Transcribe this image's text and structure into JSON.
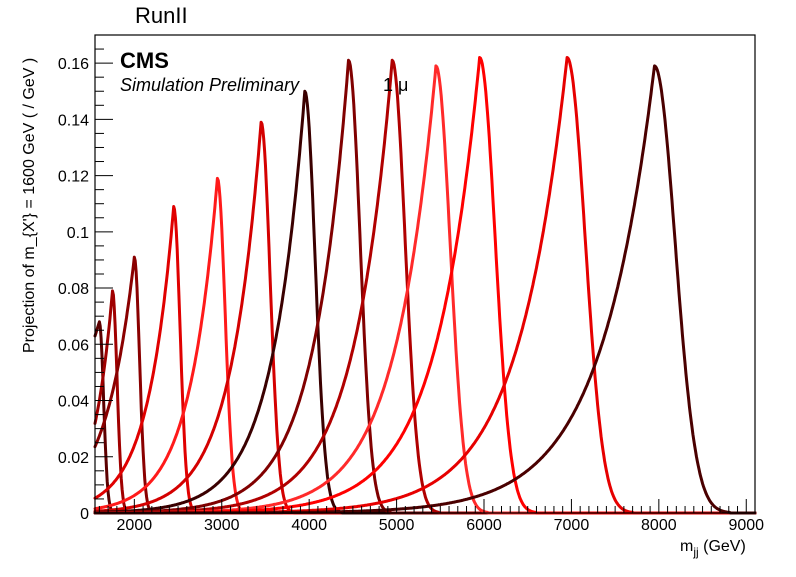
{
  "chart_data": {
    "type": "line",
    "title": "RunII",
    "label_main": "CMS",
    "label_sub": "Simulation Preliminary",
    "label_extra": "1 μ",
    "xlabel": "m",
    "xlabel_sub": "jj",
    "xlabel_unit": " (GeV)",
    "ylabel": "Projection of m_{X'} = 1600 GeV ( / GeV )",
    "xlim": [
      1550,
      9100
    ],
    "ylim": [
      0,
      0.17
    ],
    "x_ticks": [
      2000,
      3000,
      4000,
      5000,
      6000,
      7000,
      8000,
      9000
    ],
    "x_tick_labels": [
      "2000",
      "3000",
      "4000",
      "5000",
      "6000",
      "7000",
      "8000",
      "9000"
    ],
    "y_ticks": [
      0,
      0.02,
      0.04,
      0.06,
      0.08,
      0.1,
      0.12,
      0.14,
      0.16
    ],
    "y_tick_labels": [
      "0",
      "0.02",
      "0.04",
      "0.06",
      "0.08",
      "0.1",
      "0.12",
      "0.14",
      "0.16"
    ],
    "series": [
      {
        "peak": 1600,
        "height": 0.068,
        "left_value": 0.062,
        "right_value": 0.0,
        "color": "#5c0000"
      },
      {
        "peak": 1750,
        "height": 0.079,
        "left_value": 0.04,
        "right_value": 0.001,
        "color": "#a00000"
      },
      {
        "peak": 2000,
        "height": 0.091,
        "left_value": 0.037,
        "right_value": 0.001,
        "color": "#8a0000"
      },
      {
        "peak": 2450,
        "height": 0.109,
        "left_value": 0.016,
        "right_value": 0.001,
        "color": "#e00000"
      },
      {
        "peak": 2950,
        "height": 0.119,
        "left_value": 0.008,
        "right_value": 0.001,
        "color": "#ff1a1a"
      },
      {
        "peak": 3450,
        "height": 0.139,
        "left_value": 0.005,
        "right_value": 0.001,
        "color": "#d40000"
      },
      {
        "peak": 3950,
        "height": 0.15,
        "left_value": 0.003,
        "right_value": 0.001,
        "color": "#3a0000"
      },
      {
        "peak": 4450,
        "height": 0.161,
        "left_value": 0.002,
        "right_value": 0.001,
        "color": "#800000"
      },
      {
        "peak": 4950,
        "height": 0.161,
        "left_value": 0.0015,
        "right_value": 0.001,
        "color": "#b00000"
      },
      {
        "peak": 5450,
        "height": 0.159,
        "left_value": 0.001,
        "right_value": 0.001,
        "color": "#ff2a2a"
      },
      {
        "peak": 5950,
        "height": 0.162,
        "left_value": 0.0008,
        "right_value": 0.001,
        "color": "#ff0000"
      },
      {
        "peak": 6950,
        "height": 0.162,
        "left_value": 0.0005,
        "right_value": 0.001,
        "color": "#e60000"
      },
      {
        "peak": 7950,
        "height": 0.159,
        "left_value": 0.0003,
        "right_value": 0.001,
        "color": "#4a0000"
      }
    ]
  }
}
